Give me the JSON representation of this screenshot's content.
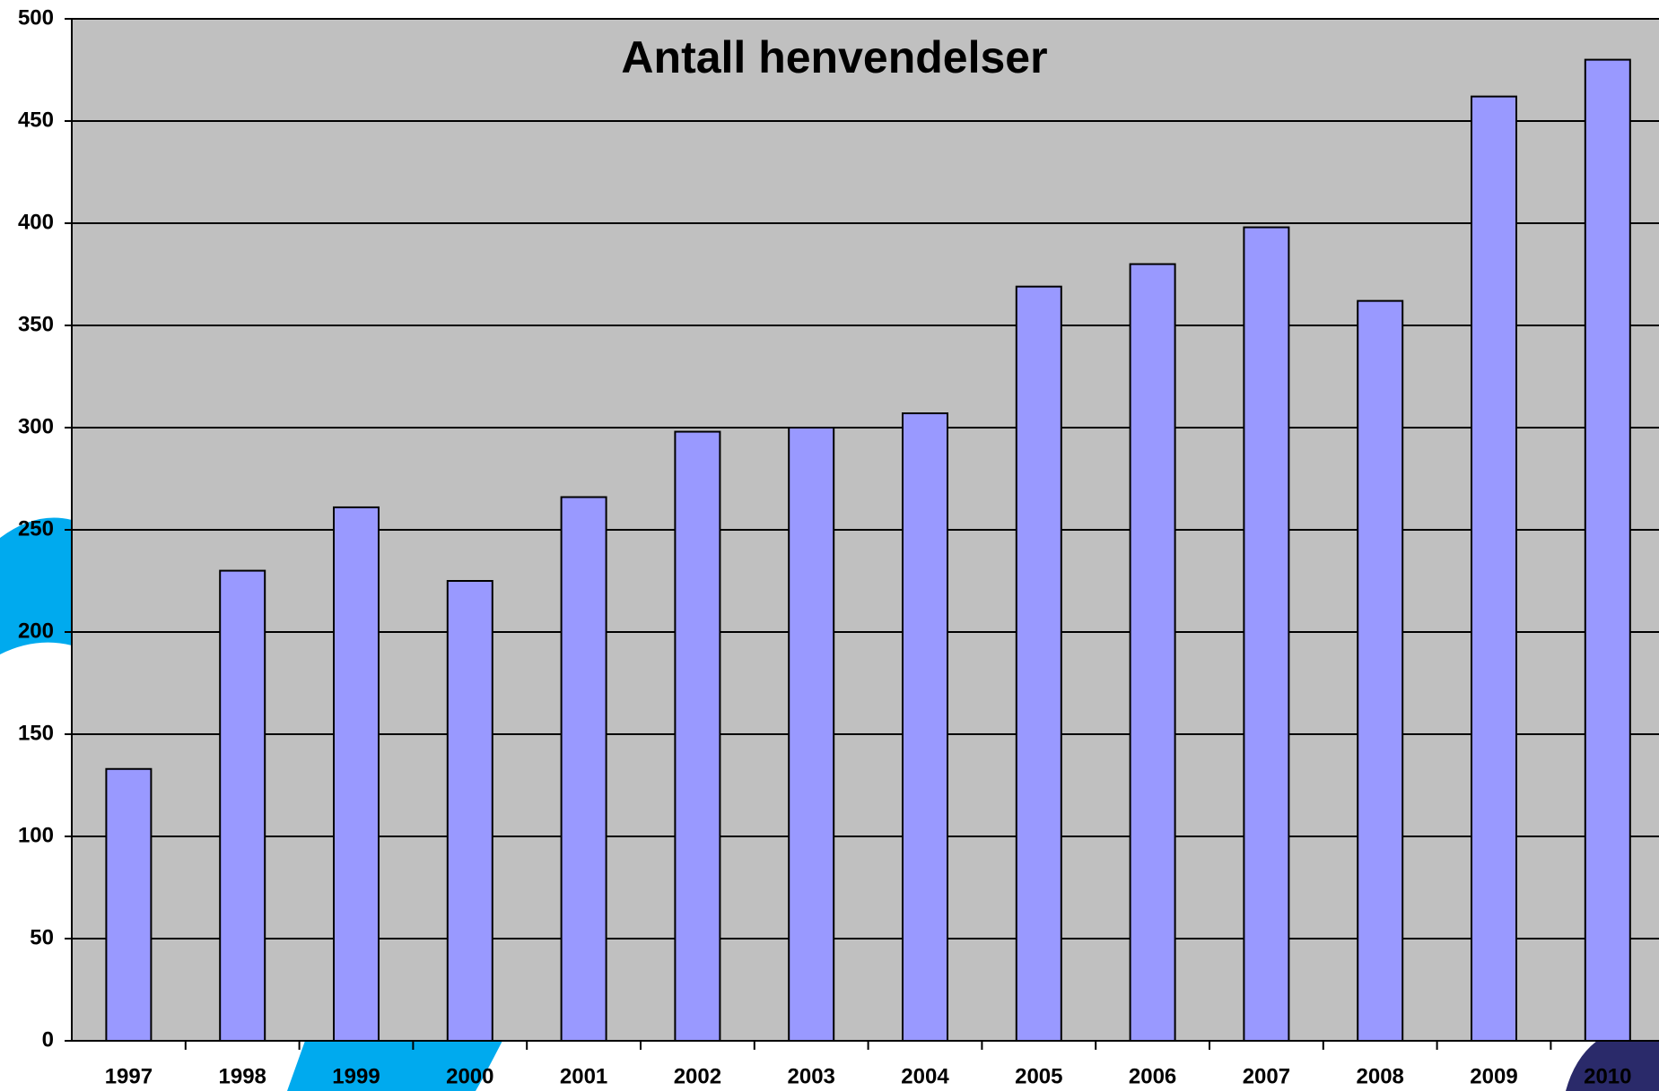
{
  "chart_data": {
    "type": "bar",
    "title": "Antall henvendelser",
    "categories": [
      "1997",
      "1998",
      "1999",
      "2000",
      "2001",
      "2002",
      "2003",
      "2004",
      "2005",
      "2006",
      "2007",
      "2008",
      "2009",
      "2010"
    ],
    "values": [
      133,
      230,
      261,
      225,
      266,
      298,
      300,
      307,
      369,
      380,
      398,
      362,
      462,
      480
    ],
    "color": "#9999ff",
    "ylim": [
      0,
      500
    ],
    "yticks": [
      0,
      50,
      100,
      150,
      200,
      250,
      300,
      350,
      400,
      450,
      500
    ],
    "grid": true
  }
}
